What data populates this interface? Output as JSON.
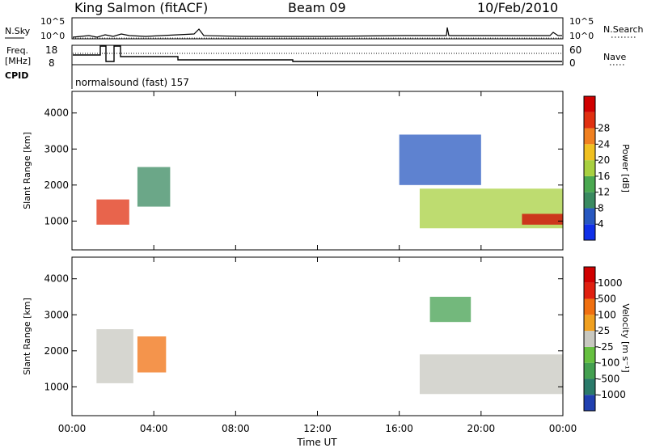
{
  "header": {
    "station": "King Salmon (fitACF)",
    "beam": "Beam 09",
    "date": "10/Feb/2010"
  },
  "strip": {
    "nsky_label": "N.Sky",
    "nsearch_label": "N.Search",
    "freq_label_top": "Freq.",
    "freq_label_bottom": "[MHz]",
    "nave_label": "Nave",
    "cpid_label": "CPID",
    "cpid_text": "normalsound (fast) 157",
    "noise_ticks": [
      "10^5",
      "10^0"
    ],
    "freq_ticks": [
      "18",
      "8"
    ],
    "nave_ticks": [
      "60",
      "0"
    ]
  },
  "colors": {
    "power": [
      "#1030e8",
      "#2858c0",
      "#3a8a60",
      "#4aa850",
      "#a8d040",
      "#f0c020",
      "#f08020",
      "#e03010",
      "#d00000"
    ],
    "velocity": [
      "#2040b0",
      "#2a7a6a",
      "#44a050",
      "#66c040",
      "#c8c8c0",
      "#f0a020",
      "#f07010",
      "#e02010",
      "#d00000"
    ]
  },
  "chart_data": [
    {
      "type": "heatmap",
      "name": "power",
      "ylabel": "Slant Range [km]",
      "yticks": [
        1000,
        2000,
        3000,
        4000
      ],
      "ylim": [
        200,
        4600
      ],
      "colorbar_label": "Power [dB]",
      "colorbar_ticks": [
        4,
        8,
        12,
        16,
        20,
        24,
        28
      ],
      "x": [
        "00:00",
        "04:00",
        "08:00",
        "12:00",
        "16:00",
        "20:00",
        "00:00"
      ],
      "regions": [
        {
          "t": [
            1.2,
            2.8
          ],
          "r": [
            900,
            1600
          ],
          "level": 7
        },
        {
          "t": [
            3.2,
            4.8
          ],
          "r": [
            1400,
            2500
          ],
          "level": 2
        },
        {
          "t": [
            17.0,
            24.0
          ],
          "r": [
            800,
            1900
          ],
          "level": 4
        },
        {
          "t": [
            22.0,
            24.0
          ],
          "r": [
            900,
            1200
          ],
          "level": 8
        },
        {
          "t": [
            16.0,
            20.0
          ],
          "r": [
            2000,
            3400
          ],
          "level": 1
        }
      ]
    },
    {
      "type": "heatmap",
      "name": "velocity",
      "ylabel": "Slant Range [km]",
      "yticks": [
        1000,
        2000,
        3000,
        4000
      ],
      "ylim": [
        200,
        4600
      ],
      "xlabel": "Time UT",
      "colorbar_label": "Velocity [m s⁻¹]",
      "colorbar_ticks": [
        1000,
        500,
        100,
        25,
        -25,
        -100,
        -500,
        -1000
      ],
      "x": [
        "00:00",
        "04:00",
        "08:00",
        "12:00",
        "16:00",
        "20:00",
        "00:00"
      ],
      "regions": [
        {
          "t": [
            1.2,
            3.0
          ],
          "r": [
            1100,
            2600
          ],
          "level": 4
        },
        {
          "t": [
            3.2,
            4.6
          ],
          "r": [
            1400,
            2400
          ],
          "level": 6
        },
        {
          "t": [
            17.0,
            24.0
          ],
          "r": [
            800,
            1900
          ],
          "level": 4
        },
        {
          "t": [
            17.5,
            19.5
          ],
          "r": [
            2800,
            3500
          ],
          "level": 2
        }
      ]
    }
  ]
}
